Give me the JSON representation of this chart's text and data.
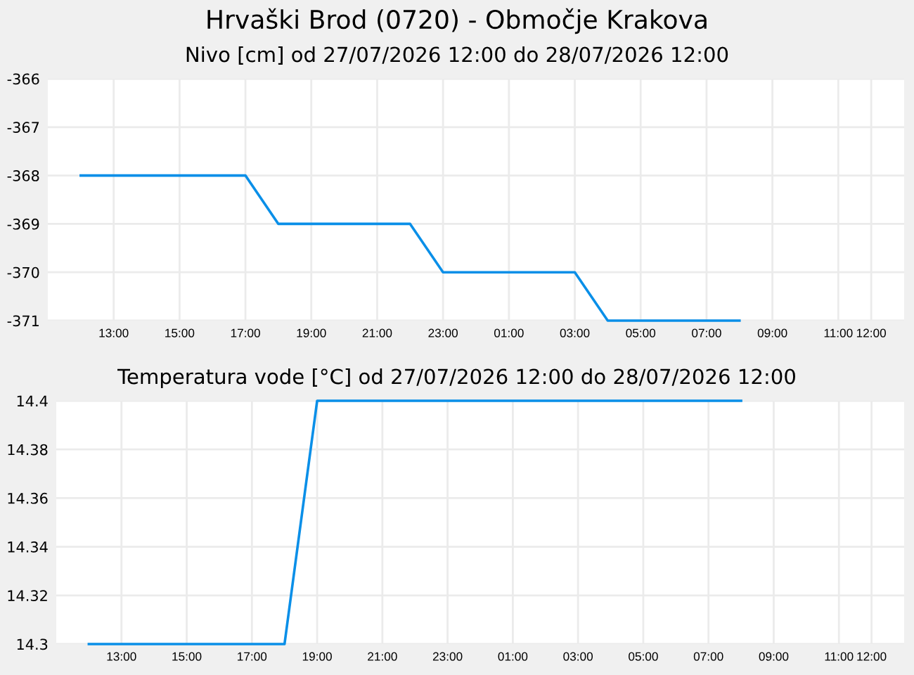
{
  "chart_data": [
    {
      "type": "line",
      "title": "Hrvaški Brod (0720) - Območje Krakova",
      "subtitle": "Nivo [cm] od 27/07/2026 12:00 do 28/07/2026 12:00",
      "series": [
        {
          "color": "#0a8fe8",
          "x": [
            "2026-07-27T12:00",
            "2026-07-27T17:00",
            "2026-07-27T18:00",
            "2026-07-27T22:00",
            "2026-07-27T23:00",
            "2026-07-28T03:00",
            "2026-07-28T04:00",
            "2026-07-28T08:00"
          ],
          "values": [
            -368,
            -368,
            -369,
            -369,
            -370,
            -370,
            -371,
            -371
          ]
        }
      ],
      "xlim": [
        "2026-07-27T11:00",
        "2026-07-28T13:00"
      ],
      "xticks": [
        {
          "value": "2026-07-27T13:00",
          "label": "13:00"
        },
        {
          "value": "2026-07-27T15:00",
          "label": "15:00"
        },
        {
          "value": "2026-07-27T17:00",
          "label": "17:00"
        },
        {
          "value": "2026-07-27T19:00",
          "label": "19:00"
        },
        {
          "value": "2026-07-27T21:00",
          "label": "21:00"
        },
        {
          "value": "2026-07-27T23:00",
          "label": "23:00"
        },
        {
          "value": "2026-07-28T01:00",
          "label": "01:00"
        },
        {
          "value": "2026-07-28T03:00",
          "label": "03:00"
        },
        {
          "value": "2026-07-28T05:00",
          "label": "05:00"
        },
        {
          "value": "2026-07-28T07:00",
          "label": "07:00"
        },
        {
          "value": "2026-07-28T09:00",
          "label": "09:00"
        },
        {
          "value": "2026-07-28T11:00",
          "label": "11:00"
        },
        {
          "value": "2026-07-28T12:00",
          "label": "12:00"
        }
      ],
      "ylim": [
        -371,
        -366
      ],
      "yticks": [
        -371,
        -370,
        -369,
        -368,
        -367,
        -366
      ],
      "grid": true,
      "marker": "none",
      "line_style": "solid"
    },
    {
      "type": "line",
      "title": "Temperatura vode [°C] od 27/07/2026 12:00 do 28/07/2026 12:00",
      "series": [
        {
          "color": "#0a8fe8",
          "x": [
            "2026-07-27T12:00",
            "2026-07-27T18:00",
            "2026-07-27T19:00",
            "2026-07-28T08:00"
          ],
          "values": [
            14.3,
            14.3,
            14.4,
            14.4
          ]
        }
      ],
      "xlim": [
        "2026-07-27T11:00",
        "2026-07-28T13:00"
      ],
      "xticks": [
        {
          "value": "2026-07-27T13:00",
          "label": "13:00"
        },
        {
          "value": "2026-07-27T15:00",
          "label": "15:00"
        },
        {
          "value": "2026-07-27T17:00",
          "label": "17:00"
        },
        {
          "value": "2026-07-27T19:00",
          "label": "19:00"
        },
        {
          "value": "2026-07-27T21:00",
          "label": "21:00"
        },
        {
          "value": "2026-07-27T23:00",
          "label": "23:00"
        },
        {
          "value": "2026-07-28T01:00",
          "label": "01:00"
        },
        {
          "value": "2026-07-28T03:00",
          "label": "03:00"
        },
        {
          "value": "2026-07-28T05:00",
          "label": "05:00"
        },
        {
          "value": "2026-07-28T07:00",
          "label": "07:00"
        },
        {
          "value": "2026-07-28T09:00",
          "label": "09:00"
        },
        {
          "value": "2026-07-28T11:00",
          "label": "11:00"
        },
        {
          "value": "2026-07-28T12:00",
          "label": "12:00"
        }
      ],
      "ylim": [
        14.3,
        14.4
      ],
      "yticks": [
        14.3,
        14.32,
        14.34,
        14.36,
        14.38,
        14.4
      ],
      "grid": true,
      "marker": "none",
      "line_style": "solid"
    }
  ]
}
